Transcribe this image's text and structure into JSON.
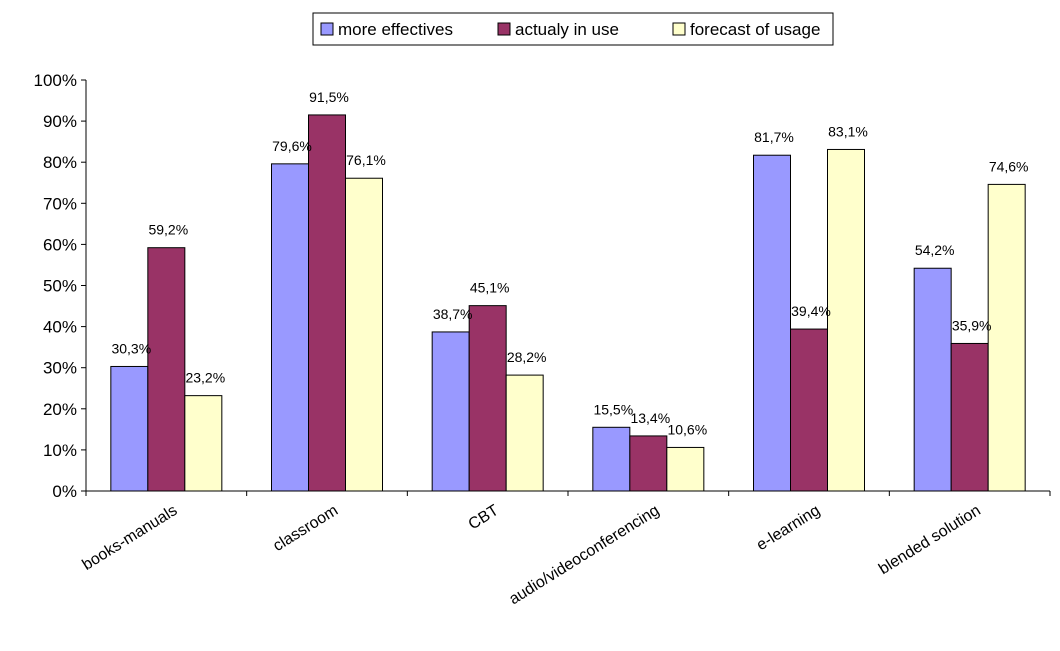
{
  "chart_data": {
    "type": "bar",
    "categories": [
      "books-manuals",
      "classroom",
      "CBT",
      "audio/videoconferencing",
      "e-learning",
      "blended  solution"
    ],
    "series": [
      {
        "name": "more effectives",
        "values": [
          30.3,
          79.6,
          38.7,
          15.5,
          81.7,
          54.2
        ],
        "color": "#9999ff"
      },
      {
        "name": "actualy in use",
        "values": [
          59.2,
          91.5,
          45.1,
          13.4,
          39.4,
          35.9
        ],
        "color": "#993366"
      },
      {
        "name": "forecast of usage",
        "values": [
          23.2,
          76.1,
          28.2,
          10.6,
          83.1,
          74.6
        ],
        "color": "#ffffcc"
      }
    ],
    "data_labels": [
      [
        "30,3%",
        "79,6%",
        "38,7%",
        "15,5%",
        "81,7%",
        "54,2%"
      ],
      [
        "59,2%",
        "91,5%",
        "45,1%",
        "13,4%",
        "39,4%",
        "35,9%"
      ],
      [
        "23,2%",
        "76,1%",
        "28,2%",
        "10,6%",
        "83,1%",
        "74,6%"
      ]
    ],
    "y_ticks": [
      "0%",
      "10%",
      "20%",
      "30%",
      "40%",
      "50%",
      "60%",
      "70%",
      "80%",
      "90%",
      "100%"
    ],
    "ylim": [
      0,
      100
    ],
    "grid": false,
    "legend_position": "top-center",
    "title": "",
    "xlabel": "",
    "ylabel": ""
  }
}
